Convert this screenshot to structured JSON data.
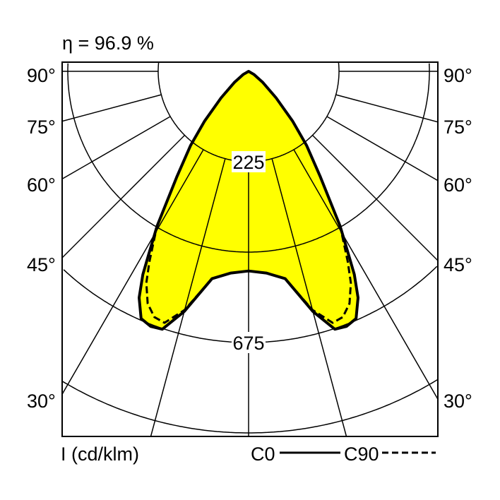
{
  "chart_data": {
    "type": "polar",
    "title": "η = 96.9 %",
    "unit_label": "I (cd/klm)",
    "angle_labels": [
      "90°",
      "75°",
      "60°",
      "45°",
      "30°"
    ],
    "angle_values": [
      90,
      75,
      60,
      45,
      30
    ],
    "radial_labels": [
      "225",
      "675"
    ],
    "radial_rings": [
      225,
      450,
      675,
      900
    ],
    "fill_color": "#ffff00",
    "series": [
      {
        "name": "C0",
        "style": "solid",
        "angles": [
          0,
          5,
          10,
          15,
          18.5,
          21,
          23.5,
          25.8,
          27.5,
          28.6,
          30.6,
          34.2,
          38,
          41.5,
          46,
          52,
          60,
          90
        ],
        "values": [
          497,
          504,
          524,
          619,
          677,
          680,
          671,
          626,
          570,
          520,
          448,
          318,
          235,
          165,
          95,
          45,
          15,
          0
        ]
      },
      {
        "name": "C90",
        "style": "dashed",
        "angles": [
          0,
          5,
          10,
          15,
          18.5,
          21,
          23.5,
          25.8,
          27.5,
          28.6,
          30.6,
          34.2,
          38,
          41.5,
          46,
          52,
          60,
          90
        ],
        "values": [
          497,
          504,
          524,
          615,
          660,
          655,
          630,
          585,
          535,
          500,
          448,
          318,
          235,
          165,
          95,
          45,
          15,
          0
        ]
      }
    ],
    "legend": {
      "c0": "C0",
      "c90": "C90"
    }
  }
}
